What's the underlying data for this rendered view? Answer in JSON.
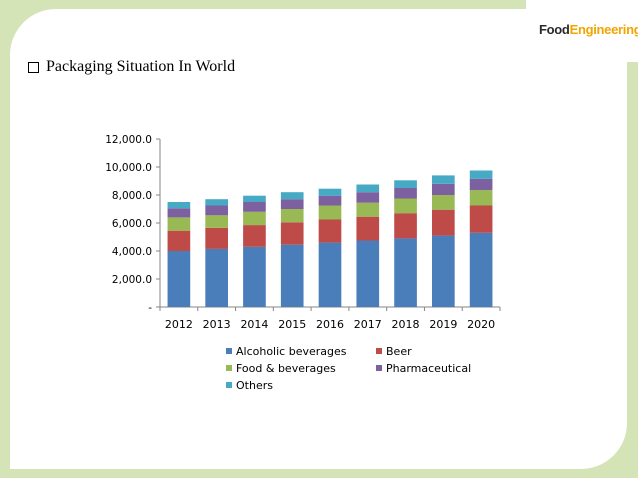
{
  "slide": {
    "title": "Packaging Situation In  World",
    "logo_part1": "Food",
    "logo_part2": "Engineering"
  },
  "colors": {
    "frame": "#d4e4b6",
    "logo_accent": "#f2a500"
  },
  "chart_data": {
    "type": "bar",
    "stacked": true,
    "categories": [
      "2012",
      "2013",
      "2014",
      "2015",
      "2016",
      "2017",
      "2018",
      "2019",
      "2020"
    ],
    "y_tick_labels": [
      "-",
      "2,000.0",
      "4,000.0",
      "6,000.0",
      "8,000.0",
      "10,000.0",
      "12,000.0"
    ],
    "ylim": [
      0,
      12000
    ],
    "grid": false,
    "legend_position": "bottom",
    "series": [
      {
        "name": "Alcoholic beverages",
        "color": "#4a7ebb",
        "values": [
          4000,
          4150,
          4300,
          4450,
          4600,
          4750,
          4900,
          5100,
          5300
        ]
      },
      {
        "name": "Beer",
        "color": "#be4b48",
        "values": [
          1450,
          1500,
          1550,
          1600,
          1650,
          1700,
          1800,
          1850,
          1950
        ]
      },
      {
        "name": "Food & beverages",
        "color": "#98b954",
        "values": [
          950,
          900,
          950,
          950,
          1000,
          1000,
          1050,
          1050,
          1100
        ]
      },
      {
        "name": "Pharmaceutical",
        "color": "#7d60a0",
        "values": [
          650,
          700,
          700,
          700,
          700,
          750,
          750,
          800,
          800
        ]
      },
      {
        "name": "Others",
        "color": "#46aac5",
        "values": [
          450,
          450,
          450,
          500,
          500,
          550,
          550,
          600,
          600
        ]
      }
    ]
  }
}
